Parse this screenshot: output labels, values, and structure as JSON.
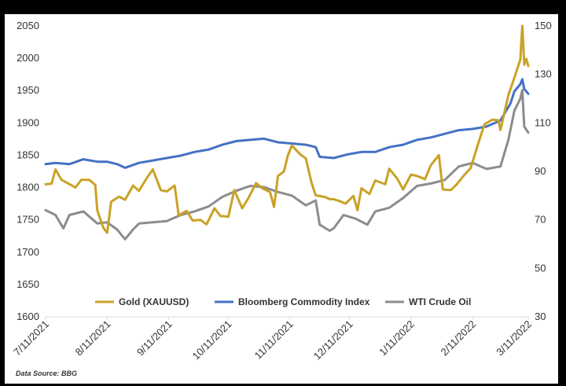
{
  "chart_data": {
    "type": "line",
    "title": "",
    "source_note": "Data Source: BBG",
    "x_labels": [
      "7/11/2021",
      "8/11/2021",
      "9/11/2021",
      "10/11/2021",
      "11/11/2021",
      "12/11/2021",
      "1/11/2022",
      "2/11/2022",
      "3/11/2022"
    ],
    "x_range": [
      "7/11/2021",
      "3/11/2022"
    ],
    "y_left": {
      "range": [
        1600,
        2050
      ],
      "ticks": [
        1600,
        1650,
        1700,
        1750,
        1800,
        1850,
        1900,
        1950,
        2000,
        2050
      ]
    },
    "y_right": {
      "range": [
        30,
        150
      ],
      "ticks": [
        30,
        50,
        70,
        90,
        110,
        130,
        150
      ]
    },
    "grid": false,
    "legend_position": "bottom-inside",
    "series": [
      {
        "name": "Gold (XAUUSD)",
        "axis": "left",
        "color": "#C9A227",
        "points": [
          [
            "7/11/2021",
            1805
          ],
          [
            "7/14/2021",
            1806
          ],
          [
            "7/16/2021",
            1828
          ],
          [
            "7/19/2021",
            1812
          ],
          [
            "7/22/2021",
            1807
          ],
          [
            "7/26/2021",
            1800
          ],
          [
            "7/29/2021",
            1812
          ],
          [
            "8/2/2021",
            1812
          ],
          [
            "8/5/2021",
            1804
          ],
          [
            "8/6/2021",
            1765
          ],
          [
            "8/9/2021",
            1738
          ],
          [
            "8/11/2021",
            1730
          ],
          [
            "8/13/2021",
            1778
          ],
          [
            "8/17/2021",
            1786
          ],
          [
            "8/20/2021",
            1781
          ],
          [
            "8/24/2021",
            1803
          ],
          [
            "8/27/2021",
            1795
          ],
          [
            "8/31/2021",
            1815
          ],
          [
            "9/3/2021",
            1828
          ],
          [
            "9/7/2021",
            1796
          ],
          [
            "9/10/2021",
            1794
          ],
          [
            "9/14/2021",
            1803
          ],
          [
            "9/16/2021",
            1757
          ],
          [
            "9/20/2021",
            1764
          ],
          [
            "9/23/2021",
            1749
          ],
          [
            "9/27/2021",
            1750
          ],
          [
            "9/30/2021",
            1743
          ],
          [
            "10/4/2021",
            1768
          ],
          [
            "10/7/2021",
            1756
          ],
          [
            "10/11/2021",
            1755
          ],
          [
            "10/14/2021",
            1796
          ],
          [
            "10/18/2021",
            1768
          ],
          [
            "10/21/2021",
            1783
          ],
          [
            "10/25/2021",
            1807
          ],
          [
            "10/28/2021",
            1799
          ],
          [
            "11/1/2021",
            1793
          ],
          [
            "11/3/2021",
            1770
          ],
          [
            "11/5/2021",
            1818
          ],
          [
            "11/8/2021",
            1825
          ],
          [
            "11/10/2021",
            1850
          ],
          [
            "11/12/2021",
            1865
          ],
          [
            "11/16/2021",
            1852
          ],
          [
            "11/19/2021",
            1845
          ],
          [
            "11/22/2021",
            1806
          ],
          [
            "11/24/2021",
            1788
          ],
          [
            "11/29/2021",
            1785
          ],
          [
            "12/1/2021",
            1782
          ],
          [
            "12/3/2021",
            1782
          ],
          [
            "12/6/2021",
            1779
          ],
          [
            "12/9/2021",
            1775
          ],
          [
            "12/13/2021",
            1787
          ],
          [
            "12/15/2021",
            1765
          ],
          [
            "12/17/2021",
            1799
          ],
          [
            "12/21/2021",
            1790
          ],
          [
            "12/24/2021",
            1811
          ],
          [
            "12/29/2021",
            1805
          ],
          [
            "12/31/2021",
            1829
          ],
          [
            "1/4/2022",
            1814
          ],
          [
            "1/7/2022",
            1797
          ],
          [
            "1/11/2022",
            1820
          ],
          [
            "1/14/2022",
            1818
          ],
          [
            "1/18/2022",
            1813
          ],
          [
            "1/21/2022",
            1835
          ],
          [
            "1/25/2022",
            1850
          ],
          [
            "1/27/2022",
            1797
          ],
          [
            "1/31/2022",
            1796
          ],
          [
            "2/3/2022",
            1805
          ],
          [
            "2/7/2022",
            1820
          ],
          [
            "2/10/2022",
            1830
          ],
          [
            "2/14/2022",
            1870
          ],
          [
            "2/17/2022",
            1898
          ],
          [
            "2/21/2022",
            1905
          ],
          [
            "2/24/2022",
            1904
          ],
          [
            "2/25/2022",
            1889
          ],
          [
            "3/1/2022",
            1943
          ],
          [
            "3/4/2022",
            1970
          ],
          [
            "3/7/2022",
            1998
          ],
          [
            "3/8/2022",
            2050
          ],
          [
            "3/9/2022",
            1990
          ],
          [
            "3/10/2022",
            1999
          ],
          [
            "3/11/2022",
            1988
          ]
        ]
      },
      {
        "name": "Bloomberg Commodity Index",
        "axis": "right",
        "color": "#4472C4",
        "points": [
          [
            "7/11/2021",
            93
          ],
          [
            "7/16/2021",
            93.5
          ],
          [
            "7/23/2021",
            93
          ],
          [
            "7/30/2021",
            95
          ],
          [
            "8/6/2021",
            94
          ],
          [
            "8/11/2021",
            94
          ],
          [
            "8/16/2021",
            93
          ],
          [
            "8/20/2021",
            91.5
          ],
          [
            "8/27/2021",
            93.5
          ],
          [
            "9/3/2021",
            94.5
          ],
          [
            "9/10/2021",
            95.5
          ],
          [
            "9/17/2021",
            96.5
          ],
          [
            "9/24/2021",
            98
          ],
          [
            "10/1/2021",
            99
          ],
          [
            "10/8/2021",
            101
          ],
          [
            "10/15/2021",
            102.5
          ],
          [
            "10/22/2021",
            103
          ],
          [
            "10/29/2021",
            103.5
          ],
          [
            "11/5/2021",
            102
          ],
          [
            "11/12/2021",
            101.5
          ],
          [
            "11/19/2021",
            101
          ],
          [
            "11/24/2021",
            100
          ],
          [
            "11/26/2021",
            96
          ],
          [
            "12/3/2021",
            95.5
          ],
          [
            "12/10/2021",
            97
          ],
          [
            "12/17/2021",
            98
          ],
          [
            "12/24/2021",
            98
          ],
          [
            "12/31/2021",
            100
          ],
          [
            "1/7/2022",
            101
          ],
          [
            "1/14/2022",
            103
          ],
          [
            "1/21/2022",
            104
          ],
          [
            "1/28/2022",
            105.5
          ],
          [
            "2/4/2022",
            107
          ],
          [
            "2/11/2022",
            107.5
          ],
          [
            "2/18/2022",
            108.5
          ],
          [
            "2/25/2022",
            111
          ],
          [
            "3/2/2022",
            118
          ],
          [
            "3/4/2022",
            123
          ],
          [
            "3/7/2022",
            126
          ],
          [
            "3/8/2022",
            128
          ],
          [
            "3/9/2022",
            124
          ],
          [
            "3/11/2022",
            122
          ]
        ]
      },
      {
        "name": "WTI Crude Oil",
        "axis": "right",
        "color": "#8C8C8C",
        "points": [
          [
            "7/11/2021",
            74
          ],
          [
            "7/16/2021",
            72
          ],
          [
            "7/20/2021",
            66.5
          ],
          [
            "7/23/2021",
            72
          ],
          [
            "7/30/2021",
            73.5
          ],
          [
            "8/6/2021",
            68.5
          ],
          [
            "8/11/2021",
            69
          ],
          [
            "8/16/2021",
            66
          ],
          [
            "8/20/2021",
            62
          ],
          [
            "8/24/2021",
            66
          ],
          [
            "8/27/2021",
            68.5
          ],
          [
            "9/3/2021",
            69
          ],
          [
            "9/10/2021",
            69.5
          ],
          [
            "9/17/2021",
            72
          ],
          [
            "9/24/2021",
            73.5
          ],
          [
            "10/1/2021",
            75.5
          ],
          [
            "10/8/2021",
            79.5
          ],
          [
            "10/15/2021",
            82
          ],
          [
            "10/22/2021",
            84
          ],
          [
            "10/29/2021",
            83.5
          ],
          [
            "11/5/2021",
            81.5
          ],
          [
            "11/12/2021",
            80
          ],
          [
            "11/19/2021",
            76
          ],
          [
            "11/24/2021",
            78
          ],
          [
            "11/26/2021",
            68
          ],
          [
            "12/1/2021",
            65.5
          ],
          [
            "12/3/2021",
            66.5
          ],
          [
            "12/8/2021",
            72
          ],
          [
            "12/14/2021",
            70.5
          ],
          [
            "12/20/2021",
            68
          ],
          [
            "12/24/2021",
            73.5
          ],
          [
            "12/31/2021",
            75
          ],
          [
            "1/7/2022",
            79
          ],
          [
            "1/14/2022",
            84
          ],
          [
            "1/21/2022",
            85
          ],
          [
            "1/28/2022",
            86.5
          ],
          [
            "2/4/2022",
            92
          ],
          [
            "2/11/2022",
            93.5
          ],
          [
            "2/18/2022",
            91
          ],
          [
            "2/25/2022",
            92
          ],
          [
            "3/1/2022",
            103
          ],
          [
            "3/4/2022",
            115
          ],
          [
            "3/7/2022",
            120
          ],
          [
            "3/8/2022",
            123.5
          ],
          [
            "3/9/2022",
            108.5
          ],
          [
            "3/11/2022",
            106
          ]
        ]
      }
    ]
  }
}
